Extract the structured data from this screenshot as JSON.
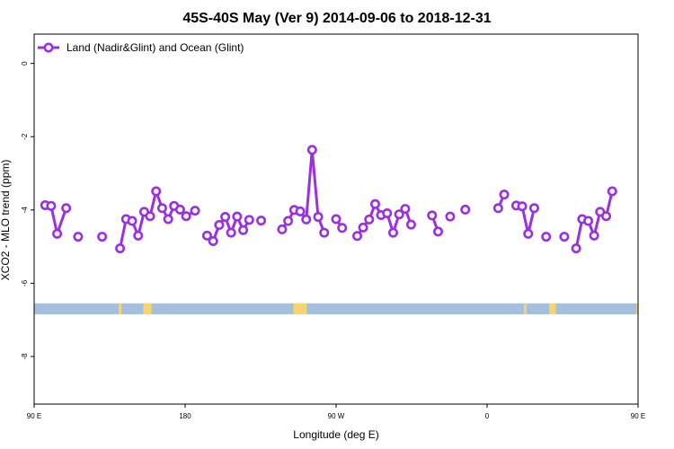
{
  "chart_data": {
    "type": "line",
    "title": "45S-40S May (Ver 9)   2014-09-06 to 2018-12-31",
    "xlabel": "Longitude (deg E)",
    "ylabel": "XCO2 - MLO trend (ppm)",
    "xlim": [
      90,
      450
    ],
    "ylim": [
      -9.3,
      0.8
    ],
    "x_ticks": [
      {
        "value": 90,
        "label": "90 E"
      },
      {
        "value": 180,
        "label": "180"
      },
      {
        "value": 270,
        "label": "90 W"
      },
      {
        "value": 360,
        "label": "0"
      },
      {
        "value": 450,
        "label": "90 E"
      },
      {
        "value": 540,
        "label": "180"
      }
    ],
    "y_ticks": [
      0,
      -2,
      -4,
      -6,
      -8
    ],
    "colors": {
      "series": "#9b30e0",
      "ocean": "#a5bfe0",
      "land": "#f7d56a",
      "axis": "#000000"
    },
    "legend": {
      "position": "top-left"
    },
    "series": [
      {
        "name": "Land (Nadir&Glint) and Ocean (Glint)",
        "points": [
          [
            96.6,
            -3.87
          ],
          [
            100.1,
            -3.89
          ],
          [
            103.7,
            -4.65
          ],
          [
            109.1,
            -3.95
          ],
          [
            116.2,
            -4.73
          ],
          [
            130.5,
            -4.73
          ],
          [
            141.2,
            -5.05
          ],
          [
            144.8,
            -4.25
          ],
          [
            148.4,
            -4.3
          ],
          [
            152.0,
            -4.7
          ],
          [
            155.6,
            -4.05
          ],
          [
            159.1,
            -4.17
          ],
          [
            162.7,
            -3.49
          ],
          [
            166.3,
            -3.95
          ],
          [
            169.9,
            -4.25
          ],
          [
            173.4,
            -3.89
          ],
          [
            177.0,
            -3.99
          ],
          [
            180.6,
            -4.17
          ],
          [
            185.9,
            -4.02
          ],
          [
            193.1,
            -4.7
          ],
          [
            196.7,
            -4.85
          ],
          [
            200.3,
            -4.41
          ],
          [
            203.9,
            -4.19
          ],
          [
            207.4,
            -4.62
          ],
          [
            211.0,
            -4.18
          ],
          [
            214.6,
            -4.55
          ],
          [
            218.2,
            -4.27
          ],
          [
            225.3,
            -4.29
          ],
          [
            237.8,
            -4.53
          ],
          [
            241.4,
            -4.3
          ],
          [
            245.0,
            -4.0
          ],
          [
            248.6,
            -4.04
          ],
          [
            252.2,
            -4.26
          ],
          [
            255.7,
            -2.36
          ],
          [
            259.3,
            -4.19
          ],
          [
            262.9,
            -4.62
          ],
          [
            270.0,
            -4.25
          ],
          [
            273.6,
            -4.49
          ],
          [
            282.6,
            -4.71
          ],
          [
            286.1,
            -4.48
          ],
          [
            289.7,
            -4.26
          ],
          [
            293.3,
            -3.84
          ],
          [
            296.8,
            -4.14
          ],
          [
            300.4,
            -4.09
          ],
          [
            304.0,
            -4.62
          ],
          [
            307.6,
            -4.12
          ],
          [
            311.2,
            -3.97
          ],
          [
            314.7,
            -4.4
          ],
          [
            327.2,
            -4.15
          ],
          [
            330.8,
            -4.59
          ],
          [
            338.0,
            -4.18
          ],
          [
            347.0,
            -3.99
          ],
          [
            366.6,
            -3.95
          ],
          [
            370.2,
            -3.58
          ],
          [
            377.4,
            -3.88
          ],
          [
            380.9,
            -3.9
          ],
          [
            384.5,
            -4.65
          ],
          [
            388.1,
            -3.95
          ],
          [
            395.2,
            -4.73
          ],
          [
            406.0,
            -4.73
          ],
          [
            413.1,
            -5.05
          ],
          [
            416.7,
            -4.25
          ],
          [
            420.3,
            -4.3
          ],
          [
            423.8,
            -4.7
          ],
          [
            427.4,
            -4.05
          ],
          [
            431.0,
            -4.17
          ],
          [
            434.6,
            -3.49
          ]
        ]
      }
    ],
    "land_ocean_band": {
      "y_range": [
        -6.85,
        -6.55
      ],
      "land_segments": [
        [
          140.5,
          142.0
        ],
        [
          155.0,
          160.0
        ],
        [
          244.5,
          252.5
        ],
        [
          382.0,
          383.5
        ],
        [
          397.0,
          401.0
        ],
        [
          449.0,
          450.0
        ]
      ]
    }
  }
}
